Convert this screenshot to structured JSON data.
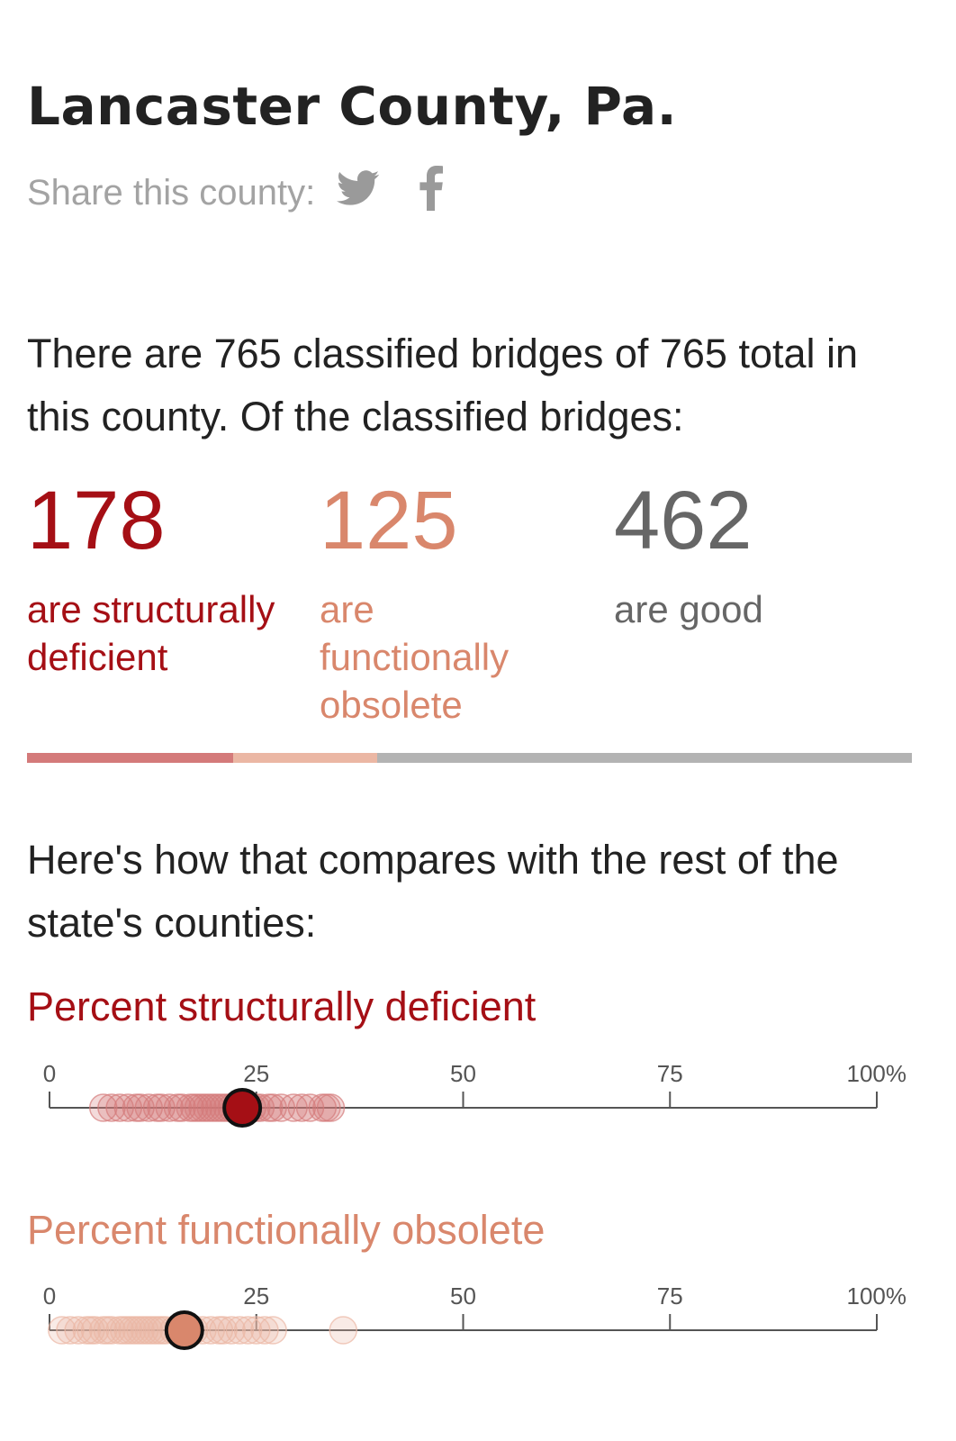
{
  "header": {
    "title": "Lancaster County, Pa.",
    "share_label": "Share this county:",
    "icons": [
      "twitter-icon",
      "facebook-icon"
    ]
  },
  "summary": {
    "intro": "There are 765 classified bridges of 765 total in this county. Of the classified bridges:",
    "stats": [
      {
        "value": "178",
        "label": "are structurally deficient",
        "color": "#a50f15"
      },
      {
        "value": "125",
        "label": "are functionally obsolete",
        "color": "#d9876c"
      },
      {
        "value": "462",
        "label": "are good",
        "color": "#666666"
      }
    ]
  },
  "comparison": {
    "intro": "Here's how that compares with the rest of the state's counties:"
  },
  "colors": {
    "deficient": "#a50f15",
    "deficient_light": "#d47a7a",
    "obsolete": "#d9876c",
    "obsolete_light": "#ebb7a4",
    "good": "#b3b3b3",
    "axis": "#555555"
  },
  "chart_data": [
    {
      "type": "scatter",
      "title": "Percent structurally deficient",
      "xlim": [
        0,
        100
      ],
      "ticks": [
        0,
        25,
        50,
        75,
        100
      ],
      "tick_labels": [
        "0",
        "25",
        "50",
        "75",
        "100%"
      ],
      "highlight": 23.3,
      "counties": [
        6.5,
        7.5,
        8.5,
        9.5,
        10.5,
        11,
        12,
        13,
        13.5,
        14.5,
        15.5,
        16,
        17,
        17.5,
        18,
        18.5,
        19,
        19.5,
        20,
        20.5,
        21,
        21.5,
        22,
        22.5,
        24,
        24.5,
        25,
        25.5,
        26.5,
        27,
        28,
        29.5,
        30.5,
        31.5,
        33,
        33.5,
        34
      ]
    },
    {
      "type": "scatter",
      "title": "Percent functionally obsolete",
      "xlim": [
        0,
        100
      ],
      "ticks": [
        0,
        25,
        50,
        75,
        100
      ],
      "tick_labels": [
        "0",
        "25",
        "50",
        "75",
        "100%"
      ],
      "highlight": 16.3,
      "counties": [
        1.5,
        2.5,
        3.5,
        4.5,
        5,
        5.5,
        6.5,
        7,
        7.5,
        8.5,
        9,
        9.5,
        10,
        10.5,
        11,
        11.5,
        12,
        12.5,
        13,
        13.5,
        14,
        15,
        17.5,
        18.5,
        19.5,
        20.5,
        21,
        22,
        23,
        24,
        25,
        26,
        27,
        35.5
      ]
    }
  ]
}
